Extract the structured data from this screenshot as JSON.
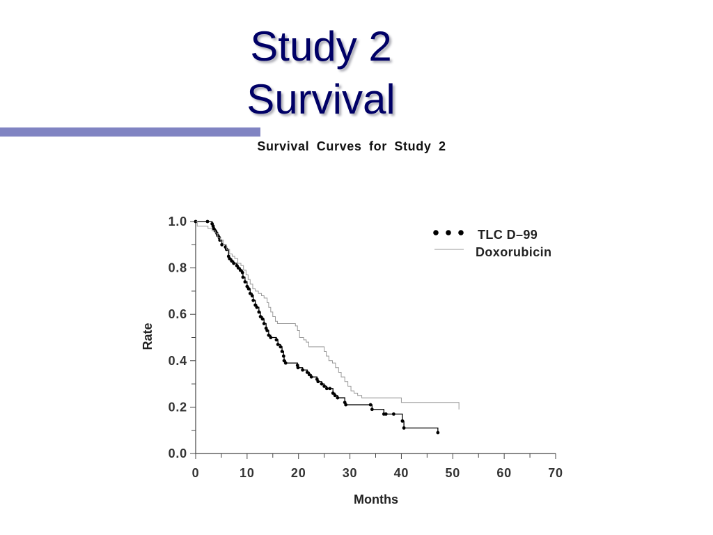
{
  "slide": {
    "title_lines": [
      "Study 2",
      "Survival"
    ],
    "title_color": "#000066",
    "accent_bar_color": "#8084c2"
  },
  "chart_data": {
    "type": "line",
    "title": "Survival Curves for Study 2",
    "xlabel": "Months",
    "ylabel": "Rate",
    "xlim": [
      0,
      70
    ],
    "ylim": [
      0,
      1.0
    ],
    "x_ticks": [
      "0",
      "10",
      "20",
      "30",
      "40",
      "50",
      "60",
      "70"
    ],
    "y_ticks": [
      "0.0",
      "0.2",
      "0.4",
      "0.6",
      "0.8",
      "1.0"
    ],
    "grid": false,
    "legend_position": "top-right",
    "series": [
      {
        "name": "TLC D–99",
        "color": "#000000",
        "step": true,
        "marker": "dot",
        "points": [
          [
            0,
            1.0
          ],
          [
            2.3,
            1.0
          ],
          [
            3.2,
            0.99
          ],
          [
            3.4,
            0.98
          ],
          [
            3.5,
            0.97
          ],
          [
            3.8,
            0.96
          ],
          [
            4.1,
            0.95
          ],
          [
            4.3,
            0.94
          ],
          [
            4.6,
            0.93
          ],
          [
            4.7,
            0.92
          ],
          [
            5.1,
            0.9
          ],
          [
            5.8,
            0.89
          ],
          [
            6.0,
            0.88
          ],
          [
            6.4,
            0.85
          ],
          [
            6.6,
            0.84
          ],
          [
            7.0,
            0.83
          ],
          [
            7.4,
            0.82
          ],
          [
            8.0,
            0.81
          ],
          [
            8.3,
            0.8
          ],
          [
            8.7,
            0.79
          ],
          [
            9.1,
            0.78
          ],
          [
            9.2,
            0.76
          ],
          [
            9.6,
            0.74
          ],
          [
            10.0,
            0.72
          ],
          [
            10.3,
            0.71
          ],
          [
            10.6,
            0.69
          ],
          [
            11.0,
            0.68
          ],
          [
            11.2,
            0.66
          ],
          [
            11.6,
            0.64
          ],
          [
            11.9,
            0.63
          ],
          [
            12.3,
            0.61
          ],
          [
            12.6,
            0.59
          ],
          [
            13.0,
            0.58
          ],
          [
            13.3,
            0.56
          ],
          [
            13.7,
            0.54
          ],
          [
            13.9,
            0.53
          ],
          [
            14.2,
            0.51
          ],
          [
            14.6,
            0.5
          ],
          [
            15.7,
            0.49
          ],
          [
            16.0,
            0.47
          ],
          [
            16.5,
            0.46
          ],
          [
            16.8,
            0.44
          ],
          [
            17.1,
            0.42
          ],
          [
            17.2,
            0.4
          ],
          [
            17.5,
            0.39
          ],
          [
            19.8,
            0.38
          ],
          [
            19.9,
            0.37
          ],
          [
            20.8,
            0.36
          ],
          [
            21.7,
            0.35
          ],
          [
            22.1,
            0.34
          ],
          [
            22.5,
            0.33
          ],
          [
            23.6,
            0.32
          ],
          [
            23.8,
            0.31
          ],
          [
            24.5,
            0.3
          ],
          [
            25.0,
            0.29
          ],
          [
            25.5,
            0.28
          ],
          [
            26.1,
            0.28
          ],
          [
            26.7,
            0.26
          ],
          [
            27.1,
            0.25
          ],
          [
            27.6,
            0.24
          ],
          [
            29.0,
            0.22
          ],
          [
            29.2,
            0.21
          ],
          [
            34.0,
            0.21
          ],
          [
            34.3,
            0.19
          ],
          [
            36.6,
            0.17
          ],
          [
            37.0,
            0.17
          ],
          [
            38.5,
            0.17
          ],
          [
            40.2,
            0.14
          ],
          [
            40.5,
            0.11
          ],
          [
            47.1,
            0.09
          ]
        ]
      },
      {
        "name": "Doxorubicin",
        "color": "#999999",
        "step": true,
        "marker": "none",
        "points": [
          [
            0,
            1.0
          ],
          [
            0.3,
            0.98
          ],
          [
            2.4,
            0.97
          ],
          [
            3.2,
            0.96
          ],
          [
            3.8,
            0.95
          ],
          [
            4.3,
            0.93
          ],
          [
            4.8,
            0.92
          ],
          [
            5.4,
            0.9
          ],
          [
            6.0,
            0.88
          ],
          [
            6.6,
            0.86
          ],
          [
            7.1,
            0.85
          ],
          [
            7.6,
            0.84
          ],
          [
            8.2,
            0.82
          ],
          [
            8.8,
            0.81
          ],
          [
            9.3,
            0.79
          ],
          [
            9.8,
            0.77
          ],
          [
            10.2,
            0.75
          ],
          [
            10.6,
            0.73
          ],
          [
            11.1,
            0.71
          ],
          [
            11.6,
            0.7
          ],
          [
            12.2,
            0.69
          ],
          [
            12.8,
            0.68
          ],
          [
            13.3,
            0.67
          ],
          [
            13.9,
            0.65
          ],
          [
            14.2,
            0.63
          ],
          [
            14.6,
            0.61
          ],
          [
            15.0,
            0.59
          ],
          [
            15.5,
            0.57
          ],
          [
            15.9,
            0.56
          ],
          [
            19.4,
            0.55
          ],
          [
            19.8,
            0.53
          ],
          [
            20.2,
            0.5
          ],
          [
            21.0,
            0.49
          ],
          [
            21.5,
            0.48
          ],
          [
            22.0,
            0.46
          ],
          [
            25.0,
            0.44
          ],
          [
            25.4,
            0.42
          ],
          [
            25.9,
            0.4
          ],
          [
            26.6,
            0.39
          ],
          [
            27.2,
            0.37
          ],
          [
            27.8,
            0.35
          ],
          [
            28.3,
            0.33
          ],
          [
            29.0,
            0.31
          ],
          [
            29.6,
            0.29
          ],
          [
            30.2,
            0.27
          ],
          [
            30.8,
            0.26
          ],
          [
            31.5,
            0.25
          ],
          [
            32.3,
            0.24
          ],
          [
            40.0,
            0.22
          ],
          [
            51.2,
            0.19
          ]
        ]
      }
    ]
  }
}
